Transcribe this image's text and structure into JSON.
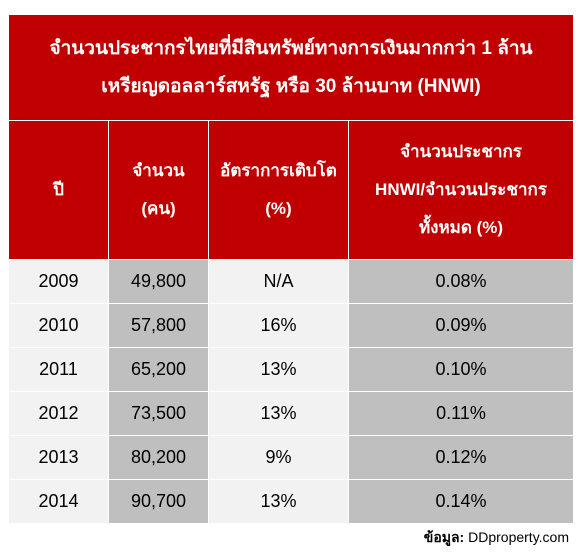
{
  "title_lines": [
    "จำนวนประชากรไทยที่มีสินทรัพย์ทางการเงินมากกว่า 1 ล้าน",
    "เหรียญดอลลาร์สหรัฐ หรือ 30 ล้านบาท (HNWI)"
  ],
  "columns": [
    {
      "lines": [
        "ปี"
      ]
    },
    {
      "lines": [
        "จำนวน",
        "(คน)"
      ]
    },
    {
      "lines": [
        "อัตราการเติบโต",
        "(%)"
      ]
    },
    {
      "lines": [
        "จำนวนประชากร",
        "HNWI/จำนวนประชากร",
        "ทั้งหมด (%)"
      ]
    }
  ],
  "rows": [
    [
      "2009",
      "49,800",
      "N/A",
      "0.08%"
    ],
    [
      "2010",
      "57,800",
      "16%",
      "0.09%"
    ],
    [
      "2011",
      "65,200",
      "13%",
      "0.10%"
    ],
    [
      "2012",
      "73,500",
      "13%",
      "0.11%"
    ],
    [
      "2013",
      "80,200",
      "9%",
      "0.12%"
    ],
    [
      "2014",
      "90,700",
      "13%",
      "0.14%"
    ]
  ],
  "source": {
    "label": "ข้อมูล:",
    "value": "DDproperty.com"
  },
  "colors": {
    "header_bg": "#c00000",
    "header_text": "#ffffff",
    "light_cell": "#f2f2f2",
    "dark_cell": "#bfbfbf"
  },
  "chart_data": {
    "type": "table",
    "title": "จำนวนประชากรไทยที่มีสินทรัพย์ทางการเงินมากกว่า 1 ล้าน เหรียญดอลลาร์สหรัฐ หรือ 30 ล้านบาท (HNWI)",
    "headers": [
      "ปี",
      "จำนวน (คน)",
      "อัตราการเติบโต (%)",
      "จำนวนประชากร HNWI/จำนวนประชากรทั้งหมด (%)"
    ],
    "x": [
      2009,
      2010,
      2011,
      2012,
      2013,
      2014
    ],
    "series": [
      {
        "name": "จำนวน (คน)",
        "values": [
          49800,
          57800,
          65200,
          73500,
          80200,
          90700
        ]
      },
      {
        "name": "อัตราการเติบโต (%)",
        "values": [
          null,
          16,
          13,
          13,
          9,
          13
        ]
      },
      {
        "name": "จำนวนประชากร HNWI/จำนวนประชากรทั้งหมด (%)",
        "values": [
          0.08,
          0.09,
          0.1,
          0.11,
          0.12,
          0.14
        ]
      }
    ]
  }
}
